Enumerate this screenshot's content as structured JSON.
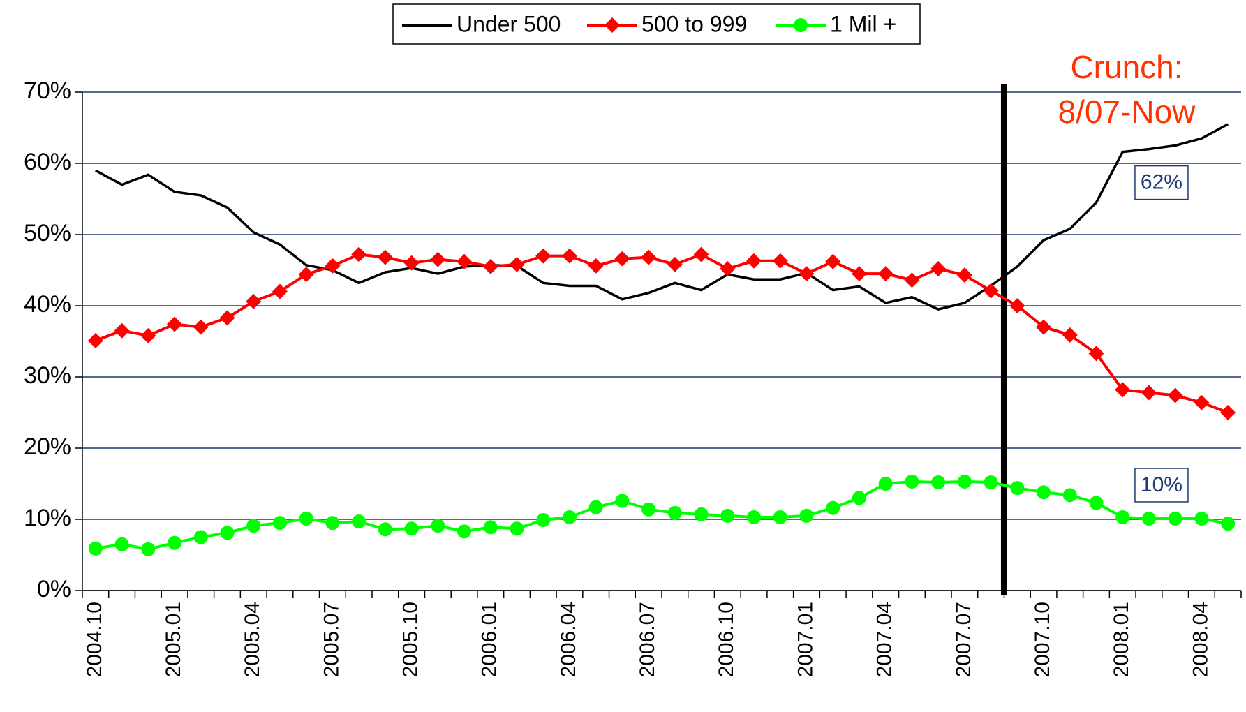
{
  "chart_data": {
    "type": "line",
    "categories": [
      "2004.10",
      null,
      null,
      "2005.01",
      null,
      null,
      "2005.04",
      null,
      null,
      "2005.07",
      null,
      null,
      "2005.10",
      null,
      null,
      "2006.01",
      null,
      null,
      "2006.04",
      null,
      null,
      "2006.07",
      null,
      null,
      "2006.10",
      null,
      null,
      "2007.01",
      null,
      null,
      "2007.04",
      null,
      null,
      "2007.07",
      null,
      null,
      "2007.10",
      null,
      null,
      "2008.01",
      null,
      null,
      "2008.04",
      null
    ],
    "series": [
      {
        "name": "Under 500",
        "color": "#000000",
        "marker": "none",
        "values": [
          59,
          57,
          58.4,
          56,
          55.5,
          53.8,
          50.3,
          48.6,
          45.7,
          45,
          43.2,
          44.7,
          45.3,
          44.5,
          45.5,
          45.7,
          45.6,
          43.2,
          42.8,
          42.8,
          40.9,
          41.8,
          43.2,
          42.2,
          44.4,
          43.7,
          43.7,
          44.6,
          42.2,
          42.7,
          40.4,
          41.2,
          39.5,
          40.4,
          42.8,
          45.5,
          49.2,
          50.8,
          54.5,
          61.6,
          62,
          62.5,
          63.5,
          65.5
        ],
        "value_labels": [
          null,
          null,
          null,
          null,
          null,
          null,
          null,
          null,
          null,
          null,
          null,
          null,
          null,
          null,
          null,
          null,
          null,
          null,
          null,
          null,
          null,
          null,
          null,
          null,
          null,
          null,
          null,
          null,
          null,
          null,
          null,
          null,
          null,
          null,
          null,
          null,
          null,
          null,
          null,
          null,
          "62%",
          null,
          null,
          null
        ]
      },
      {
        "name": "500 to 999",
        "color": "#ff0000",
        "marker": "diamond",
        "values": [
          35.1,
          36.5,
          35.8,
          37.4,
          37,
          38.3,
          40.6,
          42,
          44.4,
          45.6,
          47.2,
          46.8,
          46,
          46.5,
          46.2,
          45.5,
          45.8,
          47,
          47,
          45.6,
          46.6,
          46.8,
          45.8,
          47.2,
          45.2,
          46.3,
          46.3,
          44.5,
          46.2,
          44.5,
          44.5,
          43.6,
          45.2,
          44.3,
          42.1,
          40,
          37,
          35.9,
          33.3,
          28.2,
          27.8,
          27.4,
          26.4,
          25
        ]
      },
      {
        "name": "1 Mil +",
        "color": "#00ff00",
        "marker": "circle",
        "values": [
          5.9,
          6.5,
          5.8,
          6.7,
          7.5,
          8.1,
          9.1,
          9.5,
          10.1,
          9.5,
          9.7,
          8.6,
          8.7,
          9.1,
          8.3,
          8.9,
          8.7,
          9.9,
          10.3,
          11.7,
          12.6,
          11.4,
          10.9,
          10.7,
          10.5,
          10.3,
          10.3,
          10.5,
          11.6,
          13,
          15,
          15.3,
          15.2,
          15.3,
          15.2,
          14.4,
          13.8,
          13.4,
          12.3,
          10.3,
          10.1,
          10.1,
          10.1,
          9.4
        ],
        "value_labels": [
          null,
          null,
          null,
          null,
          null,
          null,
          null,
          null,
          null,
          null,
          null,
          null,
          null,
          null,
          null,
          null,
          null,
          null,
          null,
          null,
          null,
          null,
          null,
          null,
          null,
          null,
          null,
          null,
          null,
          null,
          null,
          null,
          null,
          null,
          null,
          null,
          null,
          null,
          null,
          null,
          "10%",
          null,
          null,
          null
        ]
      }
    ],
    "ylim": [
      0,
      70
    ],
    "yticks": [
      {
        "value": 0,
        "label": "0%"
      },
      {
        "value": 10,
        "label": "10%"
      },
      {
        "value": 20,
        "label": "20%"
      },
      {
        "value": 30,
        "label": "30%"
      },
      {
        "value": 40,
        "label": "40%"
      },
      {
        "value": 50,
        "label": "50%"
      },
      {
        "value": 60,
        "label": "60%"
      },
      {
        "value": 70,
        "label": "70%"
      }
    ],
    "grid": true,
    "legend": "top",
    "annotations": [
      {
        "text": [
          "Crunch:",
          "8/07-Now"
        ],
        "color": "#ff3300"
      }
    ]
  }
}
